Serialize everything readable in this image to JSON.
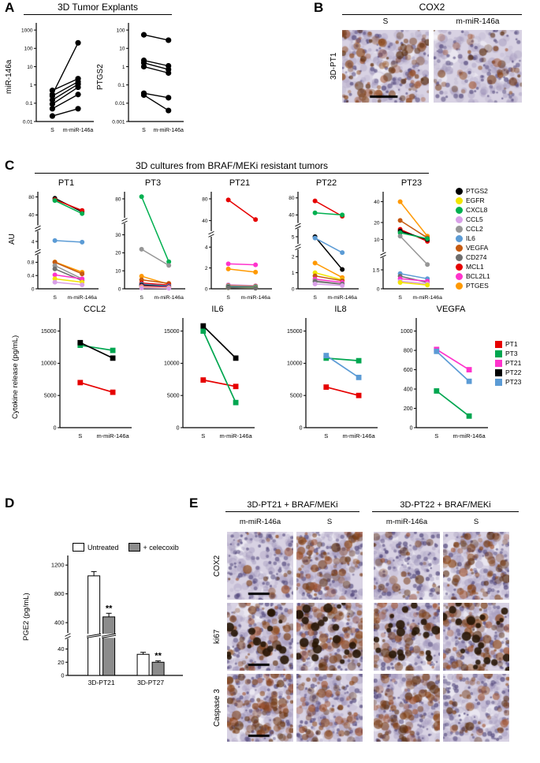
{
  "panel_a": {
    "label": "A",
    "title": "3D Tumor Explants"
  },
  "panel_b": {
    "label": "B",
    "title": "COX2",
    "row_label": "3D-PT1",
    "columns": [
      "S",
      "m-miR-146a"
    ],
    "images": [
      {
        "sample": "S",
        "stain_intensity": 0.7,
        "dark_nuclei": false,
        "scalebar": true
      },
      {
        "sample": "m-miR-146a",
        "stain_intensity": 0.28,
        "dark_nuclei": false,
        "scalebar": false
      }
    ]
  },
  "panel_c": {
    "label": "C",
    "title": "3D cultures from BRAF/MEKi resistant tumors",
    "au_label": "AU",
    "cytokine_ylabel": "Cytokine release (pg/mL)"
  },
  "panel_d": {
    "label": "D"
  },
  "panel_e": {
    "label": "E",
    "groups": [
      {
        "title": "3D-PT21 + BRAF/MEKi"
      },
      {
        "title": "3D-PT22 + BRAF/MEKi"
      }
    ],
    "column_labels": [
      "m-miR-146a",
      "S",
      "m-miR-146a",
      "S"
    ],
    "row_labels": [
      "COX2",
      "ki67",
      "Caspase 3"
    ],
    "images": [
      {
        "marker": "COX2",
        "sample": "3D-PT21 m-miR-146a",
        "stain_intensity": 0.12,
        "dark_nuclei": false,
        "scalebar": true
      },
      {
        "marker": "COX2",
        "sample": "3D-PT21 S",
        "stain_intensity": 0.55,
        "dark_nuclei": false,
        "scalebar": false
      },
      {
        "marker": "COX2",
        "sample": "3D-PT22 m-miR-146a",
        "stain_intensity": 0.2,
        "dark_nuclei": false,
        "scalebar": false
      },
      {
        "marker": "COX2",
        "sample": "3D-PT22 S",
        "stain_intensity": 0.5,
        "dark_nuclei": false,
        "scalebar": false
      },
      {
        "marker": "ki67",
        "sample": "3D-PT21 m-miR-146a",
        "stain_intensity": 0.4,
        "dark_nuclei": true,
        "scalebar": true
      },
      {
        "marker": "ki67",
        "sample": "3D-PT21 S",
        "stain_intensity": 0.65,
        "dark_nuclei": true,
        "scalebar": false
      },
      {
        "marker": "ki67",
        "sample": "3D-PT22 m-miR-146a",
        "stain_intensity": 0.5,
        "dark_nuclei": true,
        "scalebar": false
      },
      {
        "marker": "ki67",
        "sample": "3D-PT22 S",
        "stain_intensity": 0.6,
        "dark_nuclei": true,
        "scalebar": false
      },
      {
        "marker": "Caspase 3",
        "sample": "3D-PT21 m-miR-146a",
        "stain_intensity": 0.7,
        "dark_nuclei": false,
        "scalebar": true
      },
      {
        "marker": "Caspase 3",
        "sample": "3D-PT21 S",
        "stain_intensity": 0.45,
        "dark_nuclei": false,
        "scalebar": false
      },
      {
        "marker": "Caspase 3",
        "sample": "3D-PT22 m-miR-146a",
        "stain_intensity": 0.65,
        "dark_nuclei": false,
        "scalebar": false
      },
      {
        "marker": "Caspase 3",
        "sample": "3D-PT22 S",
        "stain_intensity": 0.3,
        "dark_nuclei": false,
        "scalebar": false
      }
    ]
  },
  "legend_genes": [
    "PTGS2",
    "EGFR",
    "CXCL8",
    "CCL5",
    "CCL2",
    "IL6",
    "VEGFA",
    "CD274",
    "MCL1",
    "BCL2L1",
    "PTGES"
  ],
  "legend_patients": [
    "PT1",
    "PT3",
    "PT21",
    "PT22",
    "PT23"
  ],
  "colors": {
    "genes": {
      "PTGS2": "#000000",
      "EGFR": "#F2E500",
      "CXCL8": "#00B050",
      "CCL5": "#D9A0E8",
      "CCL2": "#969696",
      "IL6": "#5B9BD5",
      "VEGFA": "#C55A11",
      "CD274": "#6E6E6E",
      "MCL1": "#E60000",
      "BCL2L1": "#FF33CC",
      "PTGES": "#FF9900"
    },
    "patients": {
      "PT1": "#E60000",
      "PT3": "#00A650",
      "PT21": "#FF33CC",
      "PT22": "#000000",
      "PT23": "#5B9BD5"
    }
  },
  "chart_data": [
    {
      "type": "paired-dot",
      "panel": "A",
      "ylabel": "miR-146a",
      "scale": "log",
      "categories": [
        "S",
        "m-miR-146a"
      ],
      "ticks": [
        0.01,
        0.1,
        1,
        10,
        100,
        1000
      ],
      "tick_labels": [
        "0.01",
        "0.1",
        "1",
        "10",
        "100",
        "1000"
      ],
      "series": [
        {
          "values": [
            0.3,
            200
          ]
        },
        {
          "values": [
            0.5,
            2.2
          ]
        },
        {
          "values": [
            0.25,
            1.5
          ]
        },
        {
          "values": [
            0.15,
            1.1
          ]
        },
        {
          "values": [
            0.09,
            0.75
          ]
        },
        {
          "values": [
            0.05,
            0.3
          ]
        },
        {
          "values": [
            0.02,
            0.05
          ]
        }
      ],
      "point_color": "#000000"
    },
    {
      "type": "paired-dot",
      "panel": "A",
      "ylabel": "PTGS2",
      "scale": "log",
      "categories": [
        "S",
        "m-miR-146a"
      ],
      "ticks": [
        0.001,
        0.01,
        0.1,
        1,
        10,
        100
      ],
      "tick_labels": [
        "0.001",
        "0.01",
        "0.1",
        "1",
        "10",
        "100"
      ],
      "series": [
        {
          "values": [
            55,
            28
          ]
        },
        {
          "values": [
            2.2,
            1.1
          ]
        },
        {
          "values": [
            1.6,
            0.7
          ]
        },
        {
          "values": [
            1.0,
            0.45
          ]
        },
        {
          "values": [
            0.035,
            0.02
          ]
        },
        {
          "values": [
            0.028,
            0.004
          ]
        }
      ],
      "point_color": "#000000"
    },
    {
      "type": "paired-dot",
      "panel": "C",
      "title": "PT1",
      "ylabel": "AU",
      "categories": [
        "S",
        "m-miR-146a"
      ],
      "ticks": [
        0,
        0.4,
        0.8,
        4,
        40,
        80
      ],
      "tick_labels": [
        "0",
        "0.4",
        "0.8",
        "4",
        "40",
        "80"
      ],
      "tick_pos": [
        0,
        0.14,
        0.28,
        0.5,
        0.78,
        0.97
      ],
      "breaks": [
        0.39,
        0.64
      ],
      "series": [
        {
          "name": "PTGS2",
          "values": [
            77,
            47
          ]
        },
        {
          "name": "MCL1",
          "values": [
            74,
            50
          ]
        },
        {
          "name": "CXCL8",
          "values": [
            72,
            43
          ]
        },
        {
          "name": "IL6",
          "values": [
            5.2,
            3.9
          ]
        },
        {
          "name": "PTGES",
          "values": [
            0.85,
            0.5
          ]
        },
        {
          "name": "VEGFA",
          "values": [
            0.8,
            0.45
          ]
        },
        {
          "name": "CCL2",
          "values": [
            0.7,
            0.3
          ]
        },
        {
          "name": "CD274",
          "values": [
            0.6,
            0.25
          ]
        },
        {
          "name": "BCL2L1",
          "values": [
            0.42,
            0.3
          ]
        },
        {
          "name": "EGFR",
          "values": [
            0.3,
            0.2
          ]
        },
        {
          "name": "CCL5",
          "values": [
            0.2,
            0.12
          ]
        }
      ]
    },
    {
      "type": "paired-dot",
      "panel": "C",
      "title": "PT3",
      "ylabel": "AU",
      "categories": [
        "S",
        "m-miR-146a"
      ],
      "ticks": [
        0,
        10,
        20,
        30,
        80
      ],
      "tick_labels": [
        "0",
        "10",
        "20",
        "30",
        "80"
      ],
      "tick_pos": [
        0,
        0.19,
        0.38,
        0.57,
        0.95
      ],
      "breaks": [
        0.72
      ],
      "series": [
        {
          "name": "CXCL8",
          "values": [
            83,
            15
          ]
        },
        {
          "name": "CCL2",
          "values": [
            22,
            13
          ]
        },
        {
          "name": "PTGES",
          "values": [
            7,
            2.5
          ]
        },
        {
          "name": "VEGFA",
          "values": [
            5,
            3
          ]
        },
        {
          "name": "MCL1",
          "values": [
            3.2,
            2.1
          ]
        },
        {
          "name": "IL6",
          "values": [
            2.6,
            1.6
          ]
        },
        {
          "name": "PTGS2",
          "values": [
            2.1,
            1.1
          ]
        },
        {
          "name": "CD274",
          "values": [
            1.6,
            0.9
          ]
        },
        {
          "name": "BCL2L1",
          "values": [
            1.2,
            0.8
          ]
        },
        {
          "name": "EGFR",
          "values": [
            0.8,
            0.5
          ]
        },
        {
          "name": "CCL5",
          "values": [
            0.5,
            0.3
          ]
        }
      ]
    },
    {
      "type": "paired-dot",
      "panel": "C",
      "title": "PT21",
      "ylabel": "AU",
      "categories": [
        "S",
        "m-miR-146a"
      ],
      "ticks": [
        0,
        2,
        4,
        40,
        80
      ],
      "tick_labels": [
        "0",
        "2",
        "4",
        "40",
        "80"
      ],
      "tick_pos": [
        0,
        0.22,
        0.44,
        0.72,
        0.95
      ],
      "breaks": [
        0.58
      ],
      "series": [
        {
          "name": "MCL1",
          "values": [
            78,
            42
          ]
        },
        {
          "name": "BCL2L1",
          "values": [
            2.4,
            2.3
          ]
        },
        {
          "name": "PTGES",
          "values": [
            1.9,
            1.6
          ]
        },
        {
          "name": "CCL5",
          "values": [
            0.4,
            0.3
          ]
        },
        {
          "name": "VEGFA",
          "values": [
            0.3,
            0.25
          ]
        },
        {
          "name": "CCL2",
          "values": [
            0.25,
            0.2
          ]
        },
        {
          "name": "IL6",
          "values": [
            0.2,
            0.15
          ]
        },
        {
          "name": "PTGS2",
          "values": [
            0.15,
            0.1
          ]
        },
        {
          "name": "CXCL8",
          "values": [
            0.12,
            0.1
          ]
        },
        {
          "name": "EGFR",
          "values": [
            0.1,
            0.08
          ]
        },
        {
          "name": "CD274",
          "values": [
            0.1,
            0.06
          ]
        }
      ]
    },
    {
      "type": "paired-dot",
      "panel": "C",
      "title": "PT22",
      "ylabel": "AU",
      "categories": [
        "S",
        "m-miR-146a"
      ],
      "ticks": [
        0,
        1,
        2,
        5,
        40,
        80
      ],
      "tick_labels": [
        "0",
        "1",
        "2",
        "5",
        "40",
        "80"
      ],
      "tick_pos": [
        0,
        0.17,
        0.34,
        0.55,
        0.78,
        0.96
      ],
      "breaks": [
        0.445,
        0.665
      ],
      "series": [
        {
          "name": "MCL1",
          "values": [
            73,
            38
          ]
        },
        {
          "name": "CXCL8",
          "values": [
            45,
            40
          ]
        },
        {
          "name": "PTGS2",
          "values": [
            5,
            1.2
          ]
        },
        {
          "name": "IL6",
          "values": [
            4.8,
            2.6
          ]
        },
        {
          "name": "PTGES",
          "values": [
            1.6,
            0.7
          ]
        },
        {
          "name": "EGFR",
          "values": [
            1.0,
            0.55
          ]
        },
        {
          "name": "VEGFA",
          "values": [
            0.8,
            0.5
          ]
        },
        {
          "name": "BCL2L1",
          "values": [
            0.6,
            0.4
          ]
        },
        {
          "name": "CCL2",
          "values": [
            0.5,
            0.3
          ]
        },
        {
          "name": "CD274",
          "values": [
            0.45,
            0.28
          ]
        },
        {
          "name": "CCL5",
          "values": [
            0.3,
            0.2
          ]
        }
      ]
    },
    {
      "type": "paired-dot",
      "panel": "C",
      "title": "PT23",
      "ylabel": "AU",
      "categories": [
        "S",
        "m-miR-146a"
      ],
      "ticks": [
        0,
        1.5,
        10,
        20,
        40
      ],
      "tick_labels": [
        "0",
        "1.5",
        "10",
        "20",
        "40"
      ],
      "tick_pos": [
        0,
        0.2,
        0.52,
        0.7,
        0.92
      ],
      "breaks": [
        0.36
      ],
      "series": [
        {
          "name": "PTGES",
          "values": [
            40,
            12
          ]
        },
        {
          "name": "VEGFA",
          "values": [
            22,
            11
          ]
        },
        {
          "name": "MCL1",
          "values": [
            16,
            9.5
          ]
        },
        {
          "name": "PTGS2",
          "values": [
            15,
            10
          ]
        },
        {
          "name": "CXCL8",
          "values": [
            14,
            10.5
          ]
        },
        {
          "name": "CCL2",
          "values": [
            12,
            3
          ]
        },
        {
          "name": "IL6",
          "values": [
            1.2,
            0.8
          ]
        },
        {
          "name": "CD274",
          "values": [
            1.0,
            0.5
          ]
        },
        {
          "name": "BCL2L1",
          "values": [
            0.8,
            0.6
          ]
        },
        {
          "name": "CCL5",
          "values": [
            0.6,
            0.4
          ]
        },
        {
          "name": "EGFR",
          "values": [
            0.5,
            0.3
          ]
        }
      ]
    },
    {
      "type": "paired-dot",
      "panel": "C-cytokine",
      "title": "CCL2",
      "categories": [
        "S",
        "m-miR-146a"
      ],
      "marker": "square",
      "ticks": [
        0,
        5000,
        10000,
        15000
      ],
      "tick_labels": [
        "0",
        "5000",
        "10000",
        "15000"
      ],
      "tick_pos": [
        0,
        0.3,
        0.6,
        0.9
      ],
      "series": [
        {
          "name": "PT1",
          "values": [
            7000,
            5500
          ]
        },
        {
          "name": "PT3",
          "values": [
            12800,
            12000
          ]
        },
        {
          "name": "PT22",
          "values": [
            13200,
            10800
          ]
        }
      ]
    },
    {
      "type": "paired-dot",
      "panel": "C-cytokine",
      "title": "IL6",
      "categories": [
        "S",
        "m-miR-146a"
      ],
      "marker": "square",
      "ticks": [
        0,
        5000,
        10000,
        15000
      ],
      "tick_labels": [
        "0",
        "5000",
        "10000",
        "15000"
      ],
      "tick_pos": [
        0,
        0.3,
        0.6,
        0.9
      ],
      "series": [
        {
          "name": "PT1",
          "values": [
            7400,
            6400
          ]
        },
        {
          "name": "PT3",
          "values": [
            15000,
            3900
          ]
        },
        {
          "name": "PT22",
          "values": [
            15800,
            10800
          ]
        }
      ]
    },
    {
      "type": "paired-dot",
      "panel": "C-cytokine",
      "title": "IL8",
      "categories": [
        "S",
        "m-miR-146a"
      ],
      "marker": "square",
      "ticks": [
        0,
        5000,
        10000,
        15000
      ],
      "tick_labels": [
        "0",
        "5000",
        "10000",
        "15000"
      ],
      "tick_pos": [
        0,
        0.3,
        0.6,
        0.9
      ],
      "series": [
        {
          "name": "PT1",
          "values": [
            6300,
            5000
          ]
        },
        {
          "name": "PT3",
          "values": [
            10800,
            10400
          ]
        },
        {
          "name": "PT23",
          "values": [
            11200,
            7800
          ]
        }
      ]
    },
    {
      "type": "paired-dot",
      "panel": "C-cytokine",
      "title": "VEGFA",
      "categories": [
        "S",
        "m-miR-146a"
      ],
      "marker": "square",
      "ticks": [
        0,
        200,
        400,
        600,
        800,
        1000
      ],
      "tick_labels": [
        "0",
        "200",
        "400",
        "600",
        "800",
        "1000"
      ],
      "tick_pos": [
        0,
        0.18,
        0.36,
        0.54,
        0.72,
        0.9
      ],
      "series": [
        {
          "name": "PT3",
          "values": [
            380,
            120
          ]
        },
        {
          "name": "PT21",
          "values": [
            810,
            600
          ]
        },
        {
          "name": "PT23",
          "values": [
            790,
            480
          ]
        }
      ]
    },
    {
      "type": "bar",
      "panel": "D",
      "ylabel": "PGE2 (pg/mL)",
      "categories": [
        "3D-PT21",
        "3D-PT27"
      ],
      "ticks": [
        0,
        20,
        40,
        400,
        800,
        1200
      ],
      "tick_labels": [
        "0",
        "20",
        "40",
        "400",
        "800",
        "1200"
      ],
      "tick_pos": [
        0,
        0.11,
        0.22,
        0.44,
        0.68,
        0.92
      ],
      "breaks": [
        0.33
      ],
      "series": [
        {
          "name": "Untreated",
          "color": "#FFFFFF",
          "values": [
            1050,
            32
          ],
          "err": [
            60,
            3
          ]
        },
        {
          "name": "+ celecoxib",
          "color": "#8C8C8C",
          "values": [
            480,
            20
          ],
          "err": [
            50,
            2
          ],
          "sig": [
            "**",
            "**"
          ]
        }
      ]
    }
  ]
}
